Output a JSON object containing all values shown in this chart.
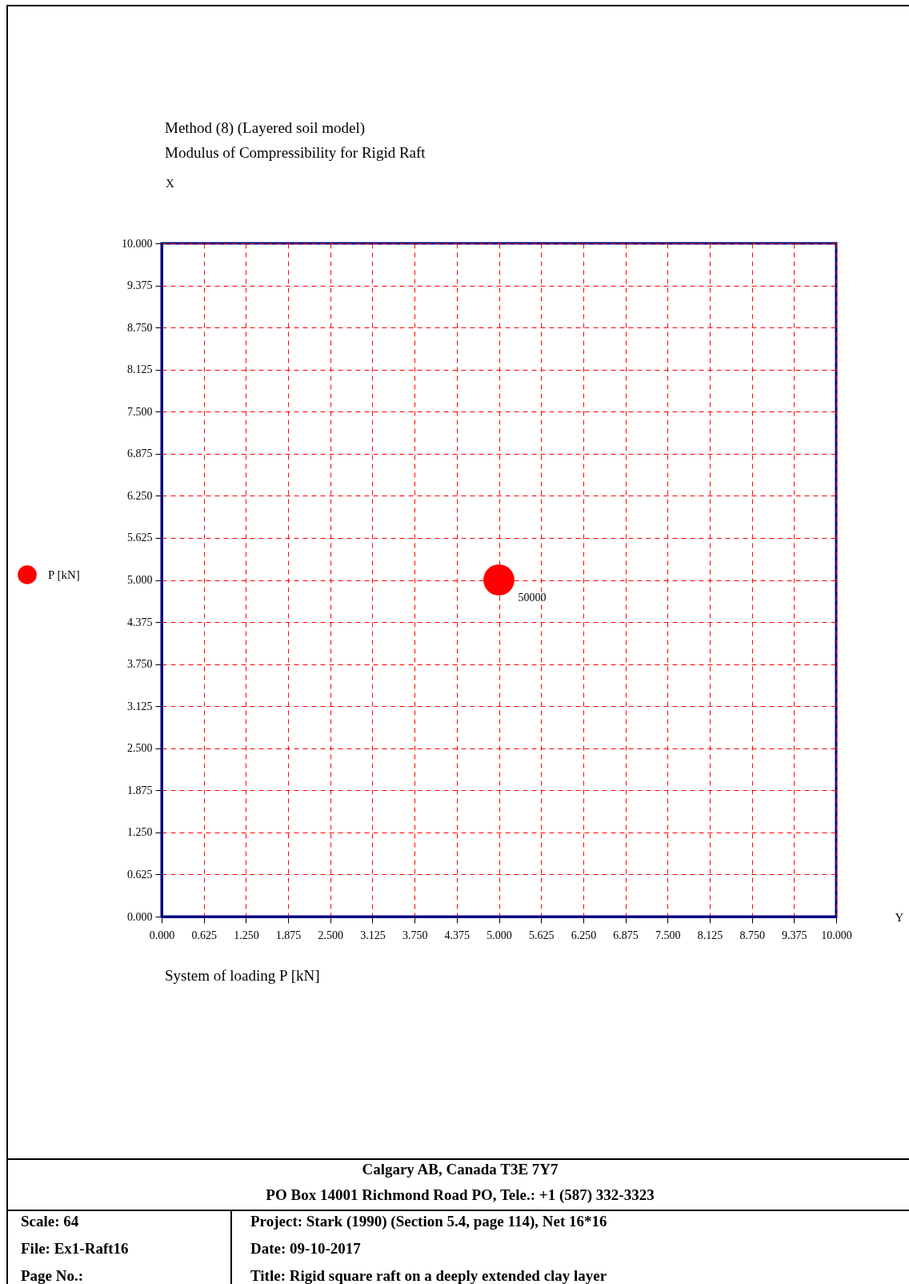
{
  "chart_data": {
    "type": "scatter",
    "title": "Method (8) (Layered soil model)",
    "subtitle": "Modulus of Compressibility for Rigid Raft",
    "xlabel": "Y",
    "ylabel": "X",
    "x": [
      5
    ],
    "series": [
      {
        "name": "P [kN]",
        "color": "#ff0000",
        "values": [
          5
        ]
      }
    ],
    "xlim": [
      0,
      10
    ],
    "ylim": [
      0,
      10
    ],
    "xticks": [
      {
        "value": 0,
        "label": "0.000"
      },
      {
        "value": 0.625,
        "label": "0.625"
      },
      {
        "value": 1.25,
        "label": "1.250"
      },
      {
        "value": 1.875,
        "label": "1.875"
      },
      {
        "value": 2.5,
        "label": "2.500"
      },
      {
        "value": 3.125,
        "label": "3.125"
      },
      {
        "value": 3.75,
        "label": "3.750"
      },
      {
        "value": 4.375,
        "label": "4.375"
      },
      {
        "value": 5,
        "label": "5.000"
      },
      {
        "value": 5.625,
        "label": "5.625"
      },
      {
        "value": 6.25,
        "label": "6.250"
      },
      {
        "value": 6.875,
        "label": "6.875"
      },
      {
        "value": 7.5,
        "label": "7.500"
      },
      {
        "value": 8.125,
        "label": "8.125"
      },
      {
        "value": 8.75,
        "label": "8.750"
      },
      {
        "value": 9.375,
        "label": "9.375"
      },
      {
        "value": 10,
        "label": "10.000"
      }
    ],
    "yticks": [
      {
        "value": 0,
        "label": "0.000"
      },
      {
        "value": 0.625,
        "label": "0.625"
      },
      {
        "value": 1.25,
        "label": "1.250"
      },
      {
        "value": 1.875,
        "label": "1.875"
      },
      {
        "value": 2.5,
        "label": "2.500"
      },
      {
        "value": 3.125,
        "label": "3.125"
      },
      {
        "value": 3.75,
        "label": "3.750"
      },
      {
        "value": 4.375,
        "label": "4.375"
      },
      {
        "value": 5,
        "label": "5.000"
      },
      {
        "value": 5.625,
        "label": "5.625"
      },
      {
        "value": 6.25,
        "label": "6.250"
      },
      {
        "value": 6.875,
        "label": "6.875"
      },
      {
        "value": 7.5,
        "label": "7.500"
      },
      {
        "value": 8.125,
        "label": "8.125"
      },
      {
        "value": 8.75,
        "label": "8.750"
      },
      {
        "value": 9.375,
        "label": "9.375"
      },
      {
        "value": 10,
        "label": "10.000"
      }
    ],
    "grid": true,
    "legend": "left",
    "marker": "circle",
    "annotations": [
      {
        "text": "50000",
        "x": 5,
        "y": 5
      },
      "System of loading P [kN]",
      "Calgary AB, Canada T3E 7Y7",
      "PO Box 14001 Richmond Road PO, Tele.: +1 (587) 332-3323",
      "Scale: 64",
      "Project: Stark (1990) (Section 5.4, page 114), Net 16*16",
      "File: Ex1-Raft16",
      "Date: 09-10-2017",
      "Page No.:",
      "Title: Rigid square raft on a deeply extended clay layer"
    ]
  }
}
